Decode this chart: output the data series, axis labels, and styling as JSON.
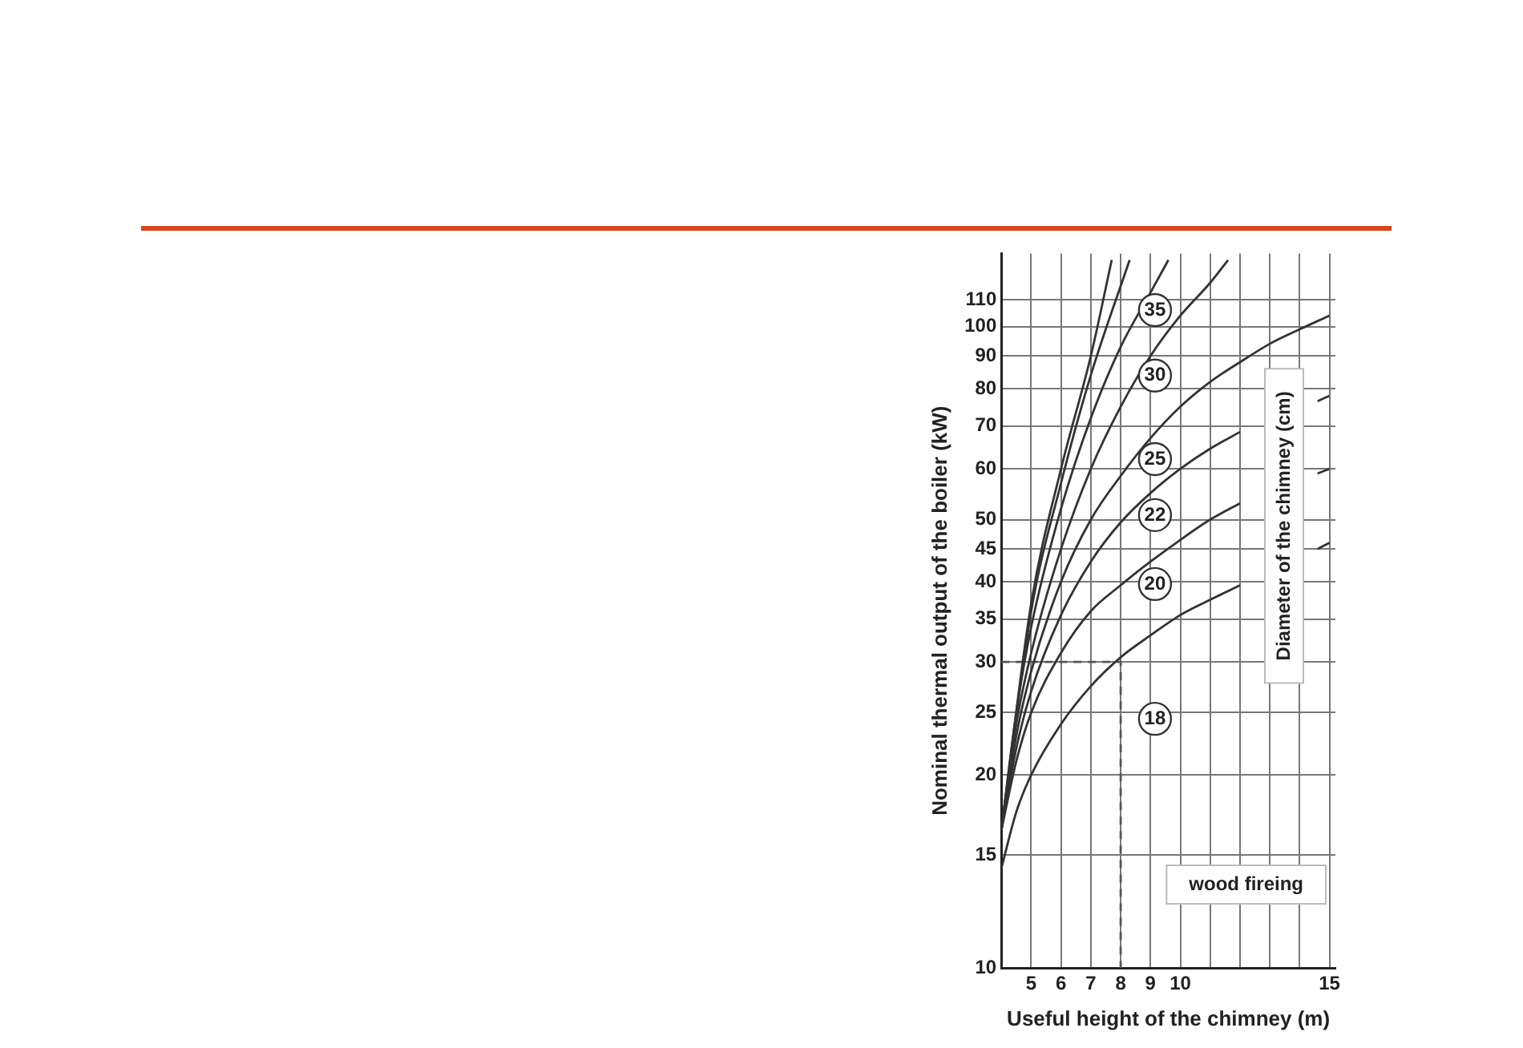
{
  "chart_data": {
    "type": "line",
    "xlabel": "Useful height of the chimney (m)",
    "ylabel": "Nominal thermal output of the boiler (kW)",
    "log": "y",
    "grid": true,
    "marker": "none",
    "line_style": "solid",
    "legend": false,
    "xlim": [
      4,
      15.2
    ],
    "xticks": [
      5,
      6,
      7,
      8,
      9,
      10,
      {
        "value": 11,
        "label": null
      },
      {
        "value": 12,
        "label": null
      },
      {
        "value": 13,
        "label": null
      },
      {
        "value": 14,
        "label": null
      },
      15
    ],
    "ylim": [
      10,
      130
    ],
    "yticks": [
      10,
      15,
      20,
      25,
      30,
      35,
      40,
      45,
      50,
      60,
      70,
      80,
      90,
      100,
      110
    ],
    "annotations": [
      "wood fireing",
      "Diameter of the chimney (cm)"
    ],
    "series": [
      {
        "name": "18",
        "color": "#333333",
        "x": [
          4,
          4.5,
          5,
          6,
          7,
          8,
          9,
          10,
          11,
          12,
          13,
          14,
          14.6,
          15
        ],
        "values": [
          14.3,
          17.5,
          20,
          24,
          27.5,
          30.5,
          33,
          35.5,
          37.5,
          39.5,
          null,
          null,
          45,
          46
        ]
      },
      {
        "name": "20",
        "color": "#333333",
        "x": [
          4,
          4.5,
          5,
          6,
          7,
          8,
          9,
          10,
          11,
          12,
          13,
          14,
          14.6,
          15
        ],
        "values": [
          16.4,
          21,
          25,
          31,
          36,
          39.5,
          43,
          46.5,
          50,
          53,
          null,
          null,
          59,
          60
        ]
      },
      {
        "name": "22",
        "color": "#333333",
        "x": [
          4,
          4.5,
          5,
          6,
          7,
          8,
          9,
          10,
          11,
          12,
          13,
          14,
          14.6,
          15
        ],
        "values": [
          16.4,
          22,
          27,
          35.5,
          43,
          49.5,
          55,
          60,
          64.5,
          68.5,
          null,
          null,
          76.5,
          78
        ]
      },
      {
        "name": "25",
        "color": "#333333",
        "x": [
          4,
          4.5,
          5,
          6,
          7,
          8,
          9,
          10,
          11,
          12,
          13,
          14,
          15
        ],
        "values": [
          16.4,
          23,
          29,
          40,
          50,
          58.5,
          67,
          75,
          82,
          88,
          94,
          99,
          104
        ]
      },
      {
        "name": "30",
        "color": "#333333",
        "x": [
          4,
          4.5,
          5,
          6,
          7,
          8,
          9,
          10,
          11,
          11.6
        ],
        "values": [
          16.4,
          24,
          31,
          45,
          60,
          75,
          90,
          104,
          117,
          127
        ]
      },
      {
        "name": "35",
        "color": "#333333",
        "x": [
          4,
          4.5,
          5,
          6,
          7,
          8,
          9,
          9.6
        ],
        "values": [
          16.4,
          25,
          34,
          52,
          72,
          93,
          113,
          127
        ]
      },
      {
        "color": "#333333",
        "x": [
          4,
          5,
          6,
          7,
          8.3
        ],
        "values": [
          16.4,
          36,
          57,
          84,
          127
        ]
      },
      {
        "color": "#333333",
        "x": [
          4,
          5,
          6,
          7,
          7.7
        ],
        "values": [
          16.4,
          37,
          60,
          90,
          127
        ]
      },
      {
        "color": "#555555",
        "line_style": "dashed",
        "x": [
          4,
          8,
          8
        ],
        "values": [
          30,
          30,
          10
        ]
      }
    ]
  }
}
